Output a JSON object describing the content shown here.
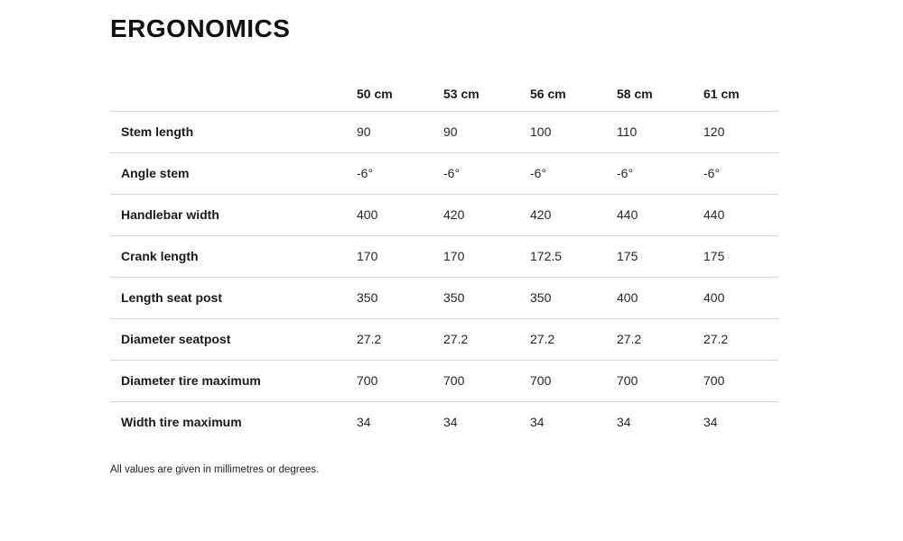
{
  "page": {
    "title": "ERGONOMICS",
    "footnote": "All values are given in millimetres or degrees."
  },
  "table": {
    "columns": [
      "50 cm",
      "53 cm",
      "56 cm",
      "58 cm",
      "61 cm"
    ],
    "rows": [
      {
        "label": "Stem length",
        "values": [
          "90",
          "90",
          "100",
          "110",
          "120"
        ]
      },
      {
        "label": "Angle stem",
        "values": [
          "-6°",
          "-6°",
          "-6°",
          "-6°",
          "-6°"
        ]
      },
      {
        "label": "Handlebar width",
        "values": [
          "400",
          "420",
          "420",
          "440",
          "440"
        ]
      },
      {
        "label": "Crank length",
        "values": [
          "170",
          "170",
          "172.5",
          "175",
          "175"
        ]
      },
      {
        "label": "Length seat post",
        "values": [
          "350",
          "350",
          "350",
          "400",
          "400"
        ]
      },
      {
        "label": "Diameter seatpost",
        "values": [
          "27.2",
          "27.2",
          "27.2",
          "27.2",
          "27.2"
        ]
      },
      {
        "label": "Diameter tire maximum",
        "values": [
          "700",
          "700",
          "700",
          "700",
          "700"
        ]
      },
      {
        "label": "Width tire maximum",
        "values": [
          "34",
          "34",
          "34",
          "34",
          "34"
        ]
      }
    ]
  },
  "colors": {
    "text": "#1a1a1a",
    "divider": "#d6d6d6"
  }
}
